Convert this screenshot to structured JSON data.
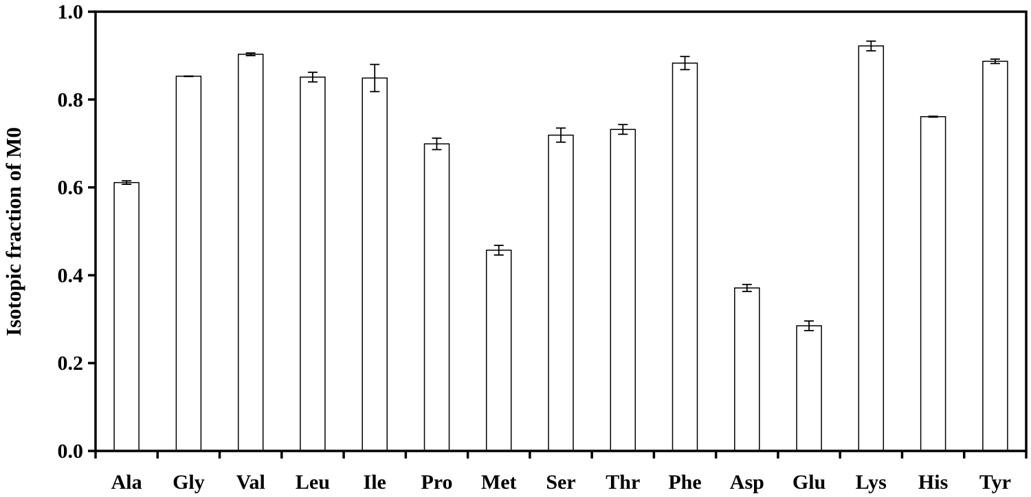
{
  "chart_data": {
    "type": "bar",
    "title": "",
    "xlabel": "",
    "ylabel": "Isotopic fraction of M0",
    "ylim": [
      0,
      1.0
    ],
    "yticks": [
      0.0,
      0.2,
      0.4,
      0.6,
      0.8,
      1.0
    ],
    "ytick_labels": [
      "0.0",
      "0.2",
      "0.4",
      "0.6",
      "0.8",
      "1.0"
    ],
    "grid": false,
    "legend": "none",
    "colors": {
      "bar_fill": "#ffffff",
      "bar_stroke": "#000000",
      "axis": "#000000"
    },
    "categories": [
      "Ala",
      "Gly",
      "Val",
      "Leu",
      "Ile",
      "Pro",
      "Met",
      "Ser",
      "Thr",
      "Phe",
      "Asp",
      "Glu",
      "Lys",
      "His",
      "Tyr"
    ],
    "values": [
      0.611,
      0.853,
      0.903,
      0.851,
      0.849,
      0.699,
      0.457,
      0.719,
      0.732,
      0.883,
      0.371,
      0.285,
      0.922,
      0.761,
      0.887
    ],
    "errors": [
      0.004,
      0.0005,
      0.003,
      0.011,
      0.031,
      0.013,
      0.011,
      0.016,
      0.011,
      0.015,
      0.008,
      0.011,
      0.011,
      0.001,
      0.005
    ]
  }
}
